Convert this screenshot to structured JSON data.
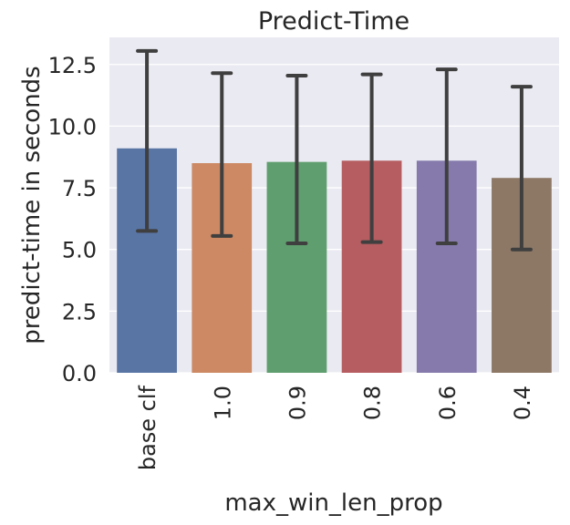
{
  "chart_data": {
    "type": "bar",
    "title": "Predict-Time",
    "xlabel": "max_win_len_prop",
    "ylabel": "predict-time in seconds",
    "categories": [
      "base clf",
      "1.0",
      "0.9",
      "0.8",
      "0.6",
      "0.4"
    ],
    "values": [
      9.1,
      8.5,
      8.55,
      8.6,
      8.6,
      7.9
    ],
    "error_low": [
      5.75,
      5.55,
      5.25,
      5.3,
      5.25,
      5.0
    ],
    "error_high": [
      13.05,
      12.15,
      12.05,
      12.1,
      12.3,
      11.6
    ],
    "ylim": [
      0,
      13.6
    ],
    "yticks": [
      "0.0",
      "2.5",
      "5.0",
      "7.5",
      "10.0",
      "12.5"
    ],
    "grid": true,
    "colors": [
      "#5975a4",
      "#cc8963",
      "#5f9e6e",
      "#b55d60",
      "#857aab",
      "#8d7866"
    ],
    "background": "#eaeaf2",
    "errorbar_color": "#3f3f3f"
  }
}
